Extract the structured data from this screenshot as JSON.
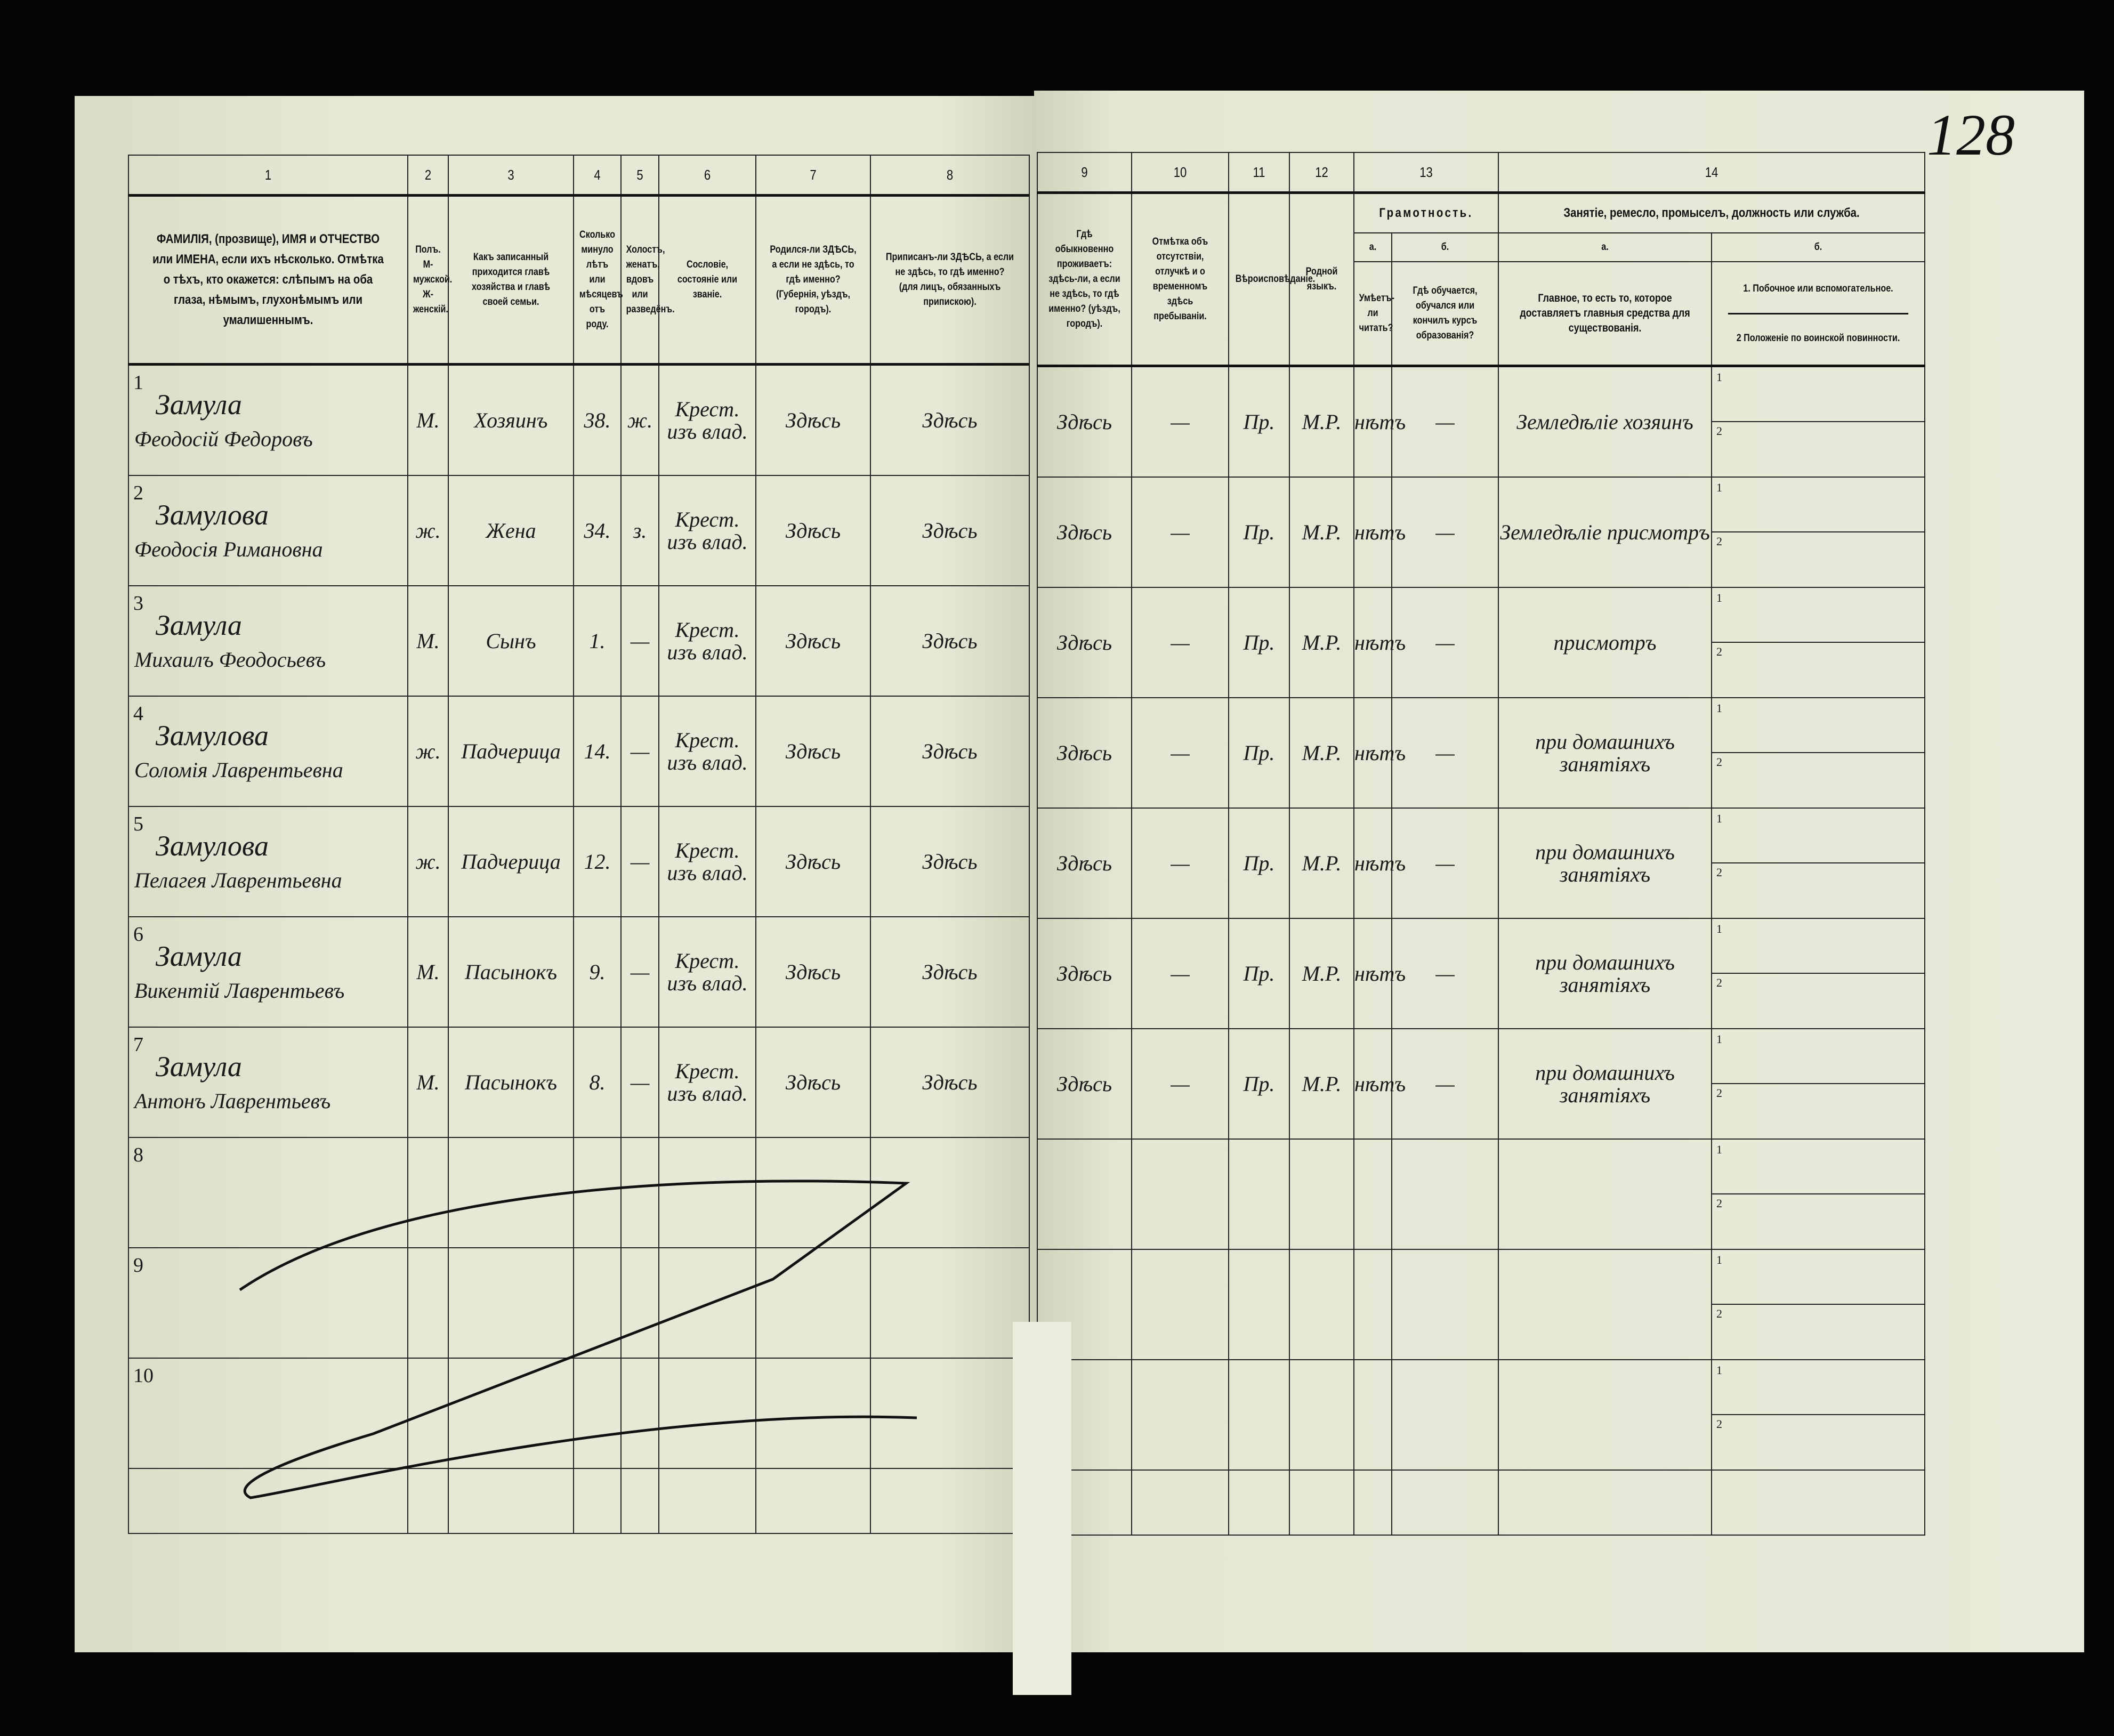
{
  "page_number": "128",
  "left_page": {
    "column_numbers": [
      "1",
      "2",
      "3",
      "4",
      "5",
      "6",
      "7",
      "8"
    ],
    "headers": [
      "ФАМИЛІЯ, (прозвище), ИМЯ и ОТЧЕСТВО или ИМЕНА, если ихъ нѣсколько. Отмѣтка о тѣхъ, кто окажется: слѣпымъ на оба глаза, нѣмымъ, глухонѣмымъ или умалишеннымъ.",
      "Полъ. М-мужской. Ж-женскій.",
      "Какъ записанный приходится главѣ хозяйства и главѣ своей семьи.",
      "Сколько минуло лѣтъ или мѣсяцевъ отъ роду.",
      "Холостъ, женатъ, вдовъ или разведёнъ.",
      "Сословіе, состояніе или званіе.",
      "Родился-ли ЗДѢСЬ, а если не здѣсь, то гдѣ именно? (Губернія, уѣздъ, городъ).",
      "Приписанъ-ли ЗДѢСЬ, а если не здѣсь, то гдѣ именно? (для лицъ, обязанныхъ припискою)."
    ]
  },
  "right_page": {
    "column_numbers": [
      "9",
      "10",
      "11",
      "12",
      "13",
      "14"
    ],
    "headers": {
      "c9": "Гдѣ обыкновенно проживаетъ: здѣсь-ли, а если не здѣсь, то гдѣ именно? (уѣздъ, городъ).",
      "c10": "Отмѣтка объ отсутствіи, отлучкѣ и о временномъ здѣсь пребываніи.",
      "c11": "Вѣроисповѣданіе.",
      "c12": "Родной языкъ.",
      "c13": "Грамотность.",
      "c13a_letter": "а.",
      "c13a": "Умѣетъ-ли читать?",
      "c13b_letter": "б.",
      "c13b": "Гдѣ обучается, обучался или кончилъ курсъ образованія?",
      "c14": "Занятіе, ремесло, промыселъ, должность или служба.",
      "c14a_letter": "а.",
      "c14a": "Главное, то есть то, которое доставляетъ главныя средства для существованія.",
      "c14b_letter": "б.",
      "c14b1": "1. Побочное или вспомогательное.",
      "c14b2": "2 Положеніе по воинской повинности."
    },
    "sub_labels": [
      "1",
      "2"
    ]
  },
  "rows": [
    {
      "n": "1",
      "surname": "Замула",
      "given": "Феодосій Федоровъ",
      "sex": "М.",
      "relation": "Хозяинъ",
      "age": "38.",
      "marital": "ж.",
      "estate": "Крест. изъ влад.",
      "born": "Здѣсь",
      "registered": "Здѣсь",
      "resides": "Здѣсь",
      "absence": "—",
      "religion": "Пр.",
      "language": "М.Р.",
      "reads": "нѣтъ",
      "education": "—",
      "occupation": "Земледѣліе хозяинъ"
    },
    {
      "n": "2",
      "surname": "Замулова",
      "given": "Феодосія Римановна",
      "sex": "ж.",
      "relation": "Жена",
      "age": "34.",
      "marital": "з.",
      "estate": "Крест. изъ влад.",
      "born": "Здѣсь",
      "registered": "Здѣсь",
      "resides": "Здѣсь",
      "absence": "—",
      "religion": "Пр.",
      "language": "М.Р.",
      "reads": "нѣтъ",
      "education": "—",
      "occupation": "Земледѣліе присмотръ"
    },
    {
      "n": "3",
      "surname": "Замула",
      "given": "Михаилъ Феодосьевъ",
      "sex": "М.",
      "relation": "Сынъ",
      "age": "1.",
      "marital": "—",
      "estate": "Крест. изъ влад.",
      "born": "Здѣсь",
      "registered": "Здѣсь",
      "resides": "Здѣсь",
      "absence": "—",
      "religion": "Пр.",
      "language": "М.Р.",
      "reads": "нѣтъ",
      "education": "—",
      "occupation": "присмотръ"
    },
    {
      "n": "4",
      "surname": "Замулова",
      "given": "Соломія Лаврентьевна",
      "sex": "ж.",
      "relation": "Падчерица",
      "age": "14.",
      "marital": "—",
      "estate": "Крест. изъ влад.",
      "born": "Здѣсь",
      "registered": "Здѣсь",
      "resides": "Здѣсь",
      "absence": "—",
      "religion": "Пр.",
      "language": "М.Р.",
      "reads": "нѣтъ",
      "education": "—",
      "occupation": "при домашнихъ занятіяхъ"
    },
    {
      "n": "5",
      "surname": "Замулова",
      "given": "Пелагея Лаврентьевна",
      "sex": "ж.",
      "relation": "Падчерица",
      "age": "12.",
      "marital": "—",
      "estate": "Крест. изъ влад.",
      "born": "Здѣсь",
      "registered": "Здѣсь",
      "resides": "Здѣсь",
      "absence": "—",
      "religion": "Пр.",
      "language": "М.Р.",
      "reads": "нѣтъ",
      "education": "—",
      "occupation": "при домашнихъ занятіяхъ"
    },
    {
      "n": "6",
      "surname": "Замула",
      "given": "Викентій Лаврентьевъ",
      "sex": "М.",
      "relation": "Пасынокъ",
      "age": "9.",
      "marital": "—",
      "estate": "Крест. изъ влад.",
      "born": "Здѣсь",
      "registered": "Здѣсь",
      "resides": "Здѣсь",
      "absence": "—",
      "religion": "Пр.",
      "language": "М.Р.",
      "reads": "нѣтъ",
      "education": "—",
      "occupation": "при домашнихъ занятіяхъ"
    },
    {
      "n": "7",
      "surname": "Замула",
      "given": "Антонъ Лаврентьевъ",
      "sex": "М.",
      "relation": "Пасынокъ",
      "age": "8.",
      "marital": "—",
      "estate": "Крест. изъ влад.",
      "born": "Здѣсь",
      "registered": "Здѣсь",
      "resides": "Здѣсь",
      "absence": "—",
      "religion": "Пр.",
      "language": "М.Р.",
      "reads": "нѣтъ",
      "education": "—",
      "occupation": "при домашнихъ занятіяхъ"
    },
    {
      "n": "8"
    },
    {
      "n": "9"
    },
    {
      "n": "10"
    }
  ]
}
